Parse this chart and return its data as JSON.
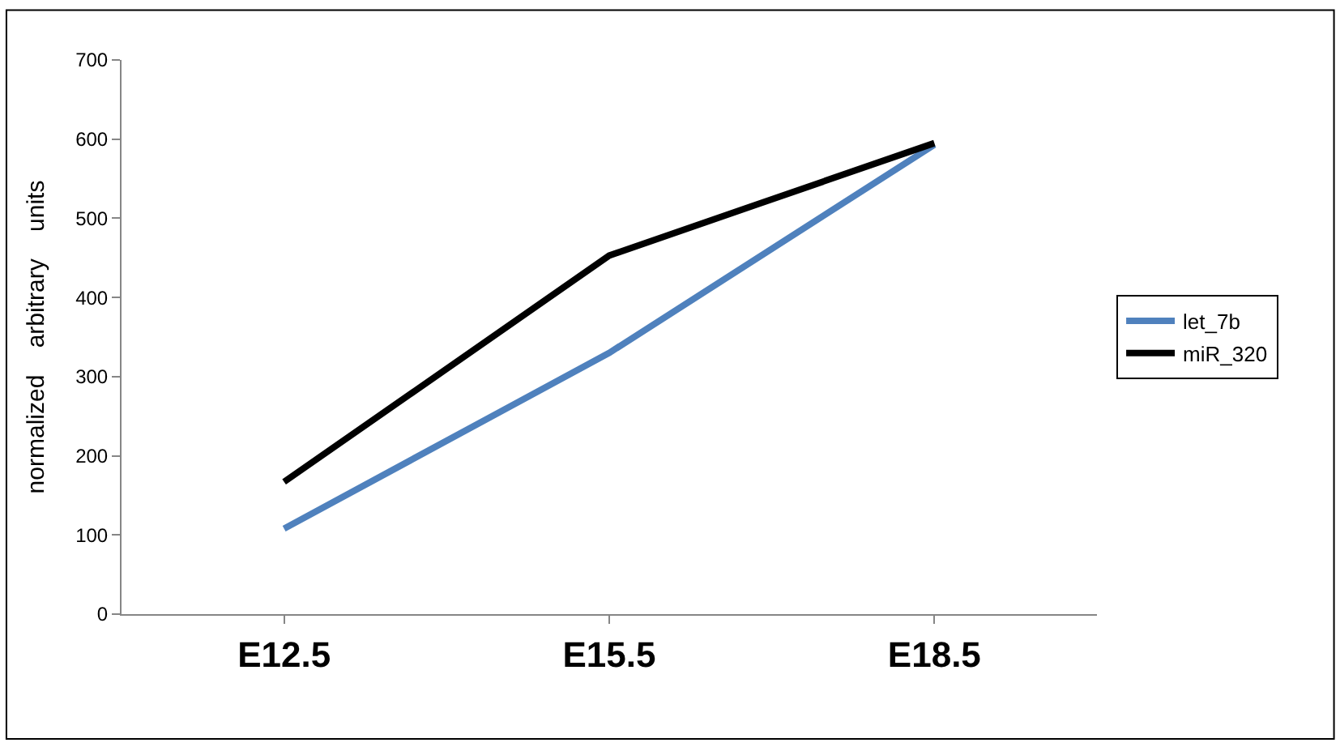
{
  "chart_data": {
    "type": "line",
    "ylabel": "normalized    arbitrary    units",
    "categories": [
      "E12.5",
      "E15.5",
      "E18.5"
    ],
    "series": [
      {
        "name": "let_7b",
        "color": "#4f81bd",
        "values": [
          108,
          330,
          593
        ]
      },
      {
        "name": "miR_320",
        "color": "#000000",
        "values": [
          167,
          453,
          595
        ]
      }
    ],
    "ylim": [
      0,
      700
    ],
    "yticks": [
      0,
      100,
      200,
      300,
      400,
      500,
      600,
      700
    ],
    "legend": "right",
    "marker": "none"
  }
}
